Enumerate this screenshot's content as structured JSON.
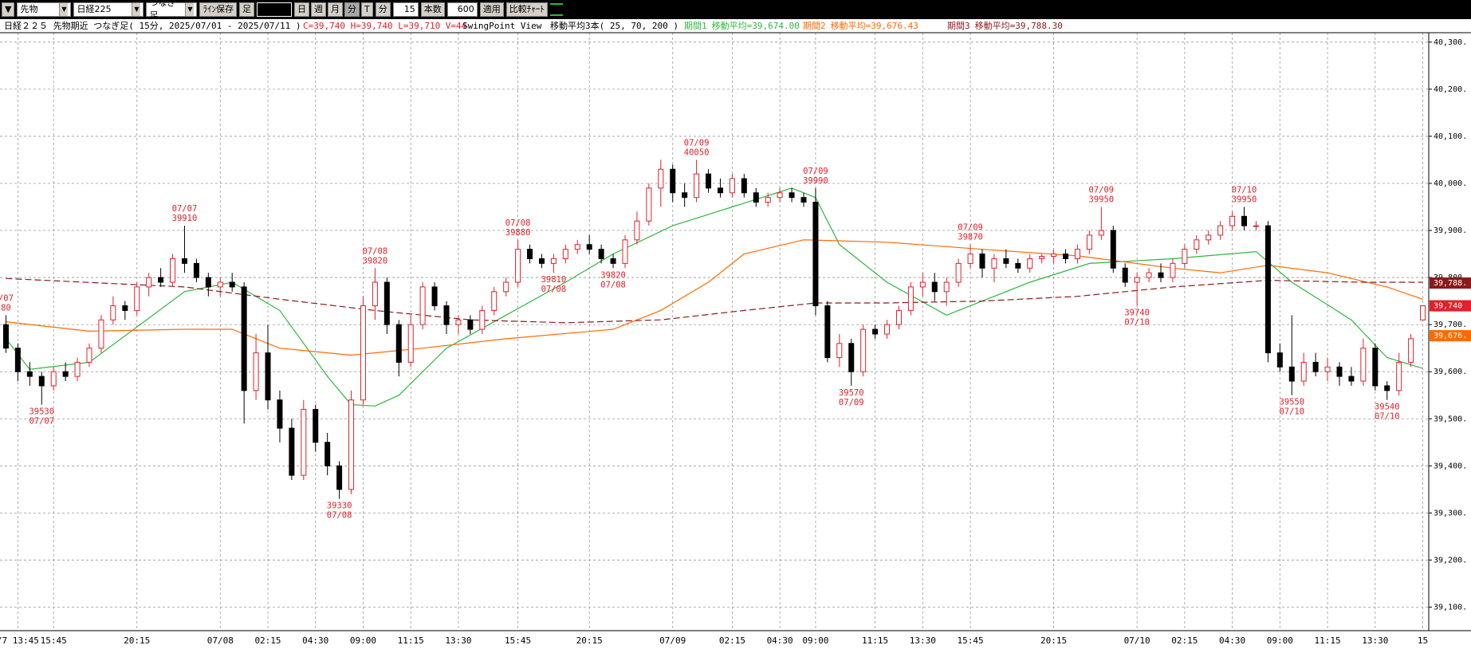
{
  "toolbar": {
    "market": "先物",
    "symbol": "日経225",
    "bar_type": "つなぎ足",
    "save": "ﾗｲﾝ保存",
    "foot": "足",
    "periods": [
      "日",
      "週",
      "月",
      "分",
      "T"
    ],
    "unit": "分",
    "interval": 15,
    "count_label": "本数",
    "count": 600,
    "apply": "適用",
    "compare": "比較ﾁｬｰﾄ"
  },
  "header": {
    "title": "日経２２５ 先物期近 つなぎ足( 15分, 2025/07/01 - 2025/07/11 )",
    "quote": "C=39,740 H=39,740 L=39,710 V=44",
    "view": "SwingPoint View",
    "ma_title": "移動平均3本( 25, 70, 200 )"
  },
  "chart_data": {
    "type": "candlestick",
    "ohlc": [
      [
        39700,
        39720,
        39640,
        39650
      ],
      [
        39650,
        39660,
        39580,
        39600
      ],
      [
        39600,
        39620,
        39570,
        39590
      ],
      [
        39590,
        39600,
        39530,
        39570
      ],
      [
        39570,
        39610,
        39560,
        39600
      ],
      [
        39600,
        39620,
        39580,
        39590
      ],
      [
        39590,
        39630,
        39580,
        39620
      ],
      [
        39620,
        39660,
        39610,
        39650
      ],
      [
        39650,
        39720,
        39640,
        39710
      ],
      [
        39710,
        39760,
        39700,
        39740
      ],
      [
        39740,
        39750,
        39710,
        39730
      ],
      [
        39730,
        39790,
        39720,
        39780
      ],
      [
        39780,
        39810,
        39760,
        39800
      ],
      [
        39800,
        39820,
        39780,
        39790
      ],
      [
        39790,
        39850,
        39780,
        39840
      ],
      [
        39840,
        39910,
        39810,
        39830
      ],
      [
        39830,
        39840,
        39790,
        39800
      ],
      [
        39800,
        39810,
        39760,
        39780
      ],
      [
        39780,
        39800,
        39760,
        39790
      ],
      [
        39790,
        39810,
        39770,
        39780
      ],
      [
        39780,
        39790,
        39490,
        39560
      ],
      [
        39560,
        39680,
        39540,
        39640
      ],
      [
        39640,
        39700,
        39520,
        39540
      ],
      [
        39540,
        39560,
        39450,
        39480
      ],
      [
        39480,
        39500,
        39370,
        39380
      ],
      [
        39380,
        39540,
        39370,
        39520
      ],
      [
        39520,
        39530,
        39430,
        39450
      ],
      [
        39450,
        39470,
        39380,
        39400
      ],
      [
        39400,
        39410,
        39330,
        39350
      ],
      [
        39350,
        39560,
        39340,
        39540
      ],
      [
        39540,
        39760,
        39530,
        39740
      ],
      [
        39740,
        39820,
        39710,
        39790
      ],
      [
        39790,
        39800,
        39680,
        39700
      ],
      [
        39700,
        39710,
        39590,
        39620
      ],
      [
        39620,
        39720,
        39610,
        39700
      ],
      [
        39700,
        39790,
        39690,
        39780
      ],
      [
        39780,
        39790,
        39730,
        39740
      ],
      [
        39740,
        39750,
        39680,
        39700
      ],
      [
        39700,
        39720,
        39680,
        39710
      ],
      [
        39710,
        39720,
        39680,
        39690
      ],
      [
        39690,
        39740,
        39680,
        39730
      ],
      [
        39730,
        39780,
        39720,
        39770
      ],
      [
        39770,
        39800,
        39760,
        39790
      ],
      [
        39790,
        39880,
        39780,
        39860
      ],
      [
        39860,
        39870,
        39830,
        39840
      ],
      [
        39840,
        39850,
        39820,
        39830
      ],
      [
        39830,
        39850,
        39810,
        39840
      ],
      [
        39840,
        39870,
        39830,
        39860
      ],
      [
        39860,
        39880,
        39850,
        39870
      ],
      [
        39870,
        39890,
        39850,
        39860
      ],
      [
        39860,
        39870,
        39830,
        39840
      ],
      [
        39840,
        39850,
        39820,
        39830
      ],
      [
        39830,
        39890,
        39820,
        39880
      ],
      [
        39880,
        39940,
        39870,
        39920
      ],
      [
        39920,
        40000,
        39910,
        39990
      ],
      [
        39990,
        40050,
        39950,
        40030
      ],
      [
        40030,
        40040,
        39960,
        39980
      ],
      [
        39980,
        40000,
        39950,
        39970
      ],
      [
        39970,
        40050,
        39960,
        40020
      ],
      [
        40020,
        40030,
        39980,
        39990
      ],
      [
        39990,
        40010,
        39970,
        39980
      ],
      [
        39980,
        40020,
        39970,
        40010
      ],
      [
        40010,
        40020,
        39970,
        39980
      ],
      [
        39980,
        39990,
        39950,
        39960
      ],
      [
        39960,
        39980,
        39950,
        39970
      ],
      [
        39970,
        39990,
        39960,
        39980
      ],
      [
        39980,
        39990,
        39960,
        39970
      ],
      [
        39970,
        39980,
        39950,
        39960
      ],
      [
        39960,
        39990,
        39720,
        39740
      ],
      [
        39740,
        39750,
        39620,
        39630
      ],
      [
        39630,
        39680,
        39610,
        39660
      ],
      [
        39660,
        39670,
        39570,
        39600
      ],
      [
        39600,
        39700,
        39590,
        39690
      ],
      [
        39690,
        39700,
        39670,
        39680
      ],
      [
        39680,
        39710,
        39670,
        39700
      ],
      [
        39700,
        39740,
        39690,
        39730
      ],
      [
        39730,
        39790,
        39720,
        39780
      ],
      [
        39780,
        39810,
        39760,
        39790
      ],
      [
        39790,
        39810,
        39750,
        39770
      ],
      [
        39770,
        39800,
        39740,
        39790
      ],
      [
        39790,
        39840,
        39780,
        39830
      ],
      [
        39830,
        39870,
        39820,
        39850
      ],
      [
        39850,
        39860,
        39800,
        39820
      ],
      [
        39820,
        39850,
        39790,
        39840
      ],
      [
        39840,
        39860,
        39820,
        39830
      ],
      [
        39830,
        39840,
        39810,
        39820
      ],
      [
        39820,
        39850,
        39810,
        39840
      ],
      [
        39840,
        39850,
        39830,
        39845
      ],
      [
        39845,
        39860,
        39830,
        39850
      ],
      [
        39850,
        39860,
        39830,
        39840
      ],
      [
        39840,
        39870,
        39830,
        39860
      ],
      [
        39860,
        39900,
        39850,
        39890
      ],
      [
        39890,
        39950,
        39880,
        39900
      ],
      [
        39900,
        39910,
        39810,
        39820
      ],
      [
        39820,
        39830,
        39780,
        39790
      ],
      [
        39790,
        39810,
        39740,
        39800
      ],
      [
        39800,
        39820,
        39790,
        39810
      ],
      [
        39810,
        39830,
        39790,
        39800
      ],
      [
        39800,
        39840,
        39790,
        39830
      ],
      [
        39830,
        39870,
        39820,
        39860
      ],
      [
        39860,
        39890,
        39850,
        39880
      ],
      [
        39880,
        39900,
        39870,
        39890
      ],
      [
        39890,
        39920,
        39880,
        39910
      ],
      [
        39910,
        39940,
        39900,
        39930
      ],
      [
        39930,
        39950,
        39900,
        39910
      ],
      [
        39910,
        39920,
        39900,
        39910
      ],
      [
        39910,
        39920,
        39620,
        39640
      ],
      [
        39640,
        39660,
        39600,
        39610
      ],
      [
        39610,
        39720,
        39550,
        39580
      ],
      [
        39580,
        39640,
        39570,
        39620
      ],
      [
        39620,
        39640,
        39590,
        39600
      ],
      [
        39600,
        39630,
        39580,
        39610
      ],
      [
        39610,
        39620,
        39570,
        39590
      ],
      [
        39590,
        39610,
        39570,
        39580
      ],
      [
        39580,
        39670,
        39570,
        39650
      ],
      [
        39650,
        39660,
        39560,
        39570
      ],
      [
        39570,
        39580,
        39540,
        39560
      ],
      [
        39560,
        39640,
        39550,
        39620
      ],
      [
        39620,
        39680,
        39610,
        39670
      ],
      [
        39710,
        39740,
        39710,
        39740
      ]
    ],
    "up_color": "#e0202a",
    "down_color": "#000000",
    "series": [
      {
        "name": "期間1",
        "label": "移動平均=39,674.00",
        "color": "#2db83d",
        "dash": false,
        "x": [
          0,
          2,
          7,
          15,
          19,
          23,
          27,
          29,
          31,
          33,
          37,
          42,
          47,
          51,
          56,
          61,
          66,
          68,
          70,
          74,
          79,
          82,
          86,
          91,
          98,
          105,
          108,
          113,
          116,
          119
        ],
        "values": [
          39670,
          39605,
          39620,
          39770,
          39790,
          39730,
          39590,
          39530,
          39527,
          39550,
          39650,
          39720,
          39790,
          39850,
          39910,
          39950,
          39990,
          39970,
          39870,
          39790,
          39720,
          39750,
          39790,
          39830,
          39840,
          39855,
          39790,
          39710,
          39630,
          39607
        ]
      },
      {
        "name": "期間2",
        "label": "移動平均=39,676.43",
        "color": "#ff6a00",
        "dash": false,
        "x": [
          0,
          7,
          15,
          19,
          23,
          29,
          35,
          42,
          51,
          55,
          59,
          62,
          67,
          74,
          82,
          90,
          98,
          102,
          106,
          111,
          116,
          119
        ],
        "values": [
          39706,
          39686,
          39690,
          39690,
          39650,
          39635,
          39650,
          39670,
          39690,
          39730,
          39790,
          39850,
          39880,
          39875,
          39860,
          39846,
          39820,
          39810,
          39826,
          39810,
          39780,
          39754
        ]
      },
      {
        "name": "期間3",
        "label": "移動平均=39,788.30",
        "color": "#8b1a1a",
        "dash": true,
        "x": [
          0,
          15,
          23,
          31,
          39,
          47,
          55,
          62,
          68,
          74,
          82,
          90,
          98,
          106,
          114,
          119
        ],
        "values": [
          39798,
          39780,
          39754,
          39730,
          39710,
          39704,
          39710,
          39730,
          39746,
          39746,
          39750,
          39760,
          39780,
          39794,
          39790,
          39790
        ]
      }
    ],
    "ylim": [
      39050,
      40320
    ],
    "yticks": [
      {
        "value": 39100,
        "label": "39,100."
      },
      {
        "value": 39200,
        "label": "39,200."
      },
      {
        "value": 39300,
        "label": "39,300."
      },
      {
        "value": 39400,
        "label": "39,400."
      },
      {
        "value": 39500,
        "label": "39,500."
      },
      {
        "value": 39600,
        "label": "39,600."
      },
      {
        "value": 39700,
        "label": "39,700."
      },
      {
        "value": 39800,
        "label": "39,800."
      },
      {
        "value": 39900,
        "label": "39,900."
      },
      {
        "value": 40000,
        "label": "40,000."
      },
      {
        "value": 40100,
        "label": "40,100."
      },
      {
        "value": 40200,
        "label": "40,200."
      },
      {
        "value": 40300,
        "label": "40,300."
      }
    ],
    "xticks": [
      {
        "value": 1,
        "label": "/7 13:45"
      },
      {
        "value": 4,
        "label": "15:45"
      },
      {
        "value": 11,
        "label": "20:15"
      },
      {
        "value": 18,
        "label": "07/08"
      },
      {
        "value": 22,
        "label": "02:15"
      },
      {
        "value": 26,
        "label": "04:30"
      },
      {
        "value": 30,
        "label": "09:00"
      },
      {
        "value": 34,
        "label": "11:15"
      },
      {
        "value": 38,
        "label": "13:30"
      },
      {
        "value": 43,
        "label": "15:45"
      },
      {
        "value": 49,
        "label": "20:15"
      },
      {
        "value": 56,
        "label": "07/09"
      },
      {
        "value": 61,
        "label": "02:15"
      },
      {
        "value": 65,
        "label": "04:30"
      },
      {
        "value": 68,
        "label": "09:00"
      },
      {
        "value": 73,
        "label": "11:15"
      },
      {
        "value": 77,
        "label": "13:30"
      },
      {
        "value": 81,
        "label": "15:45"
      },
      {
        "value": 88,
        "label": "20:15"
      },
      {
        "value": 95,
        "label": "07/10"
      },
      {
        "value": 99,
        "label": "02:15"
      },
      {
        "value": 103,
        "label": "04:30"
      },
      {
        "value": 107,
        "label": "09:00"
      },
      {
        "value": 111,
        "label": "11:15"
      },
      {
        "value": 115,
        "label": "13:30"
      },
      {
        "value": 119,
        "label": "15"
      }
    ],
    "price_markers": [
      {
        "value": 39788.3,
        "label": "39,788.",
        "color": "#8b1a1a"
      },
      {
        "value": 39740,
        "label": "39,740",
        "color": "#e0202a"
      },
      {
        "value": 39676.43,
        "label": "39,676.",
        "color": "#ff6a00"
      }
    ],
    "annotations": [
      {
        "index": 0,
        "date": "/07",
        "price": "80",
        "position": "above"
      },
      {
        "index": 3,
        "date": "07/07",
        "price": 39530,
        "position": "below"
      },
      {
        "index": 15,
        "date": "07/07",
        "price": 39910,
        "position": "above"
      },
      {
        "index": 28,
        "date": "07/08",
        "price": 39330,
        "position": "below"
      },
      {
        "index": 31,
        "date": "07/08",
        "price": 39820,
        "position": "above"
      },
      {
        "index": 43,
        "date": "07/08",
        "price": 39880,
        "position": "above"
      },
      {
        "index": 46,
        "date": "07/08",
        "price": 39810,
        "position": "below"
      },
      {
        "index": 51,
        "date": "07/08",
        "price": 39820,
        "position": "below"
      },
      {
        "index": 58,
        "date": "07/09",
        "price": 40050,
        "position": "above"
      },
      {
        "index": 68,
        "date": "07/09",
        "price": 39990,
        "position": "above"
      },
      {
        "index": 71,
        "date": "07/09",
        "price": 39570,
        "position": "below"
      },
      {
        "index": 81,
        "date": "07/09",
        "price": 39870,
        "position": "above"
      },
      {
        "index": 92,
        "date": "07/09",
        "price": 39950,
        "position": "above"
      },
      {
        "index": 95,
        "date": "07/10",
        "price": 39740,
        "position": "below"
      },
      {
        "index": 104,
        "date": "07/10",
        "price": 39950,
        "position": "above"
      },
      {
        "index": 108,
        "date": "07/10",
        "price": 39550,
        "position": "below"
      },
      {
        "index": 116,
        "date": "07/10",
        "price": 39540,
        "position": "below"
      }
    ],
    "grid": true
  }
}
